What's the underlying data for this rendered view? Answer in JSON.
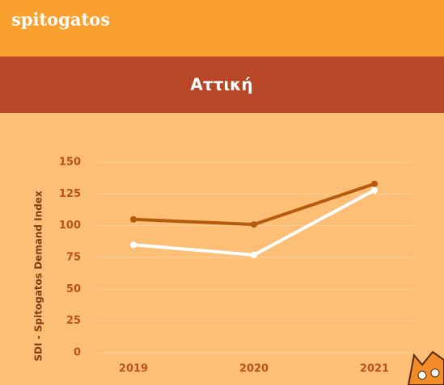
{
  "logo": "spitogatos",
  "chart_data": {
    "type": "line",
    "title": "Αττική",
    "ylabel": "SDI - Spitogatos Demand Index",
    "categories": [
      "2019",
      "2020",
      "2021"
    ],
    "series": [
      {
        "color": "#b65a0c",
        "values": [
          105,
          101,
          133
        ]
      },
      {
        "color": "#ffffff",
        "values": [
          85,
          77,
          128
        ]
      }
    ],
    "ylim": [
      0,
      150
    ],
    "yticks": [
      0,
      25,
      50,
      75,
      100,
      125,
      150
    ],
    "grid": true
  }
}
